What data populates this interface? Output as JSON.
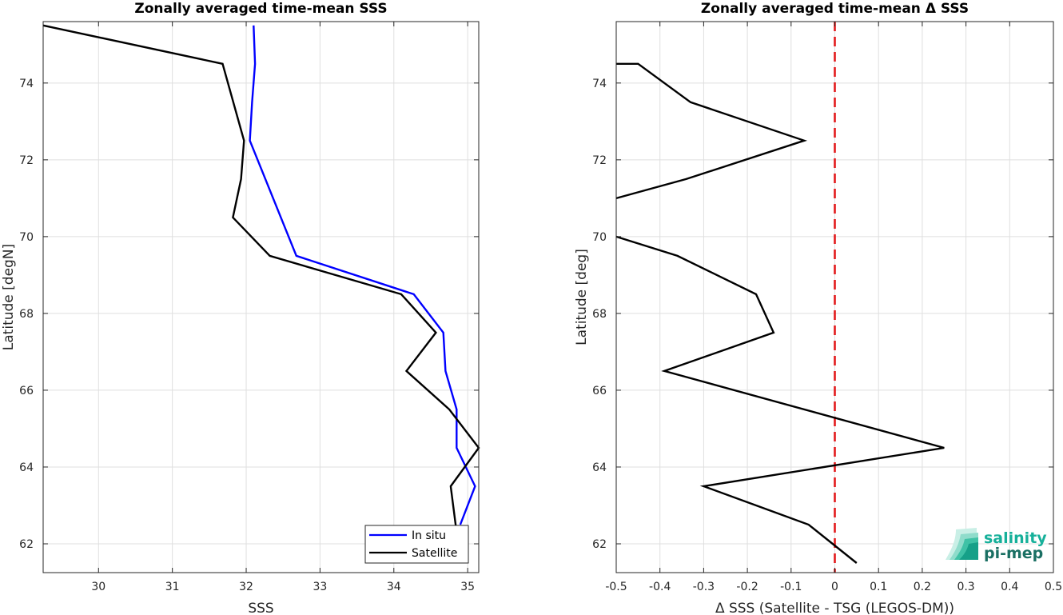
{
  "chart_data": [
    {
      "type": "line",
      "title": "Zonally averaged time-mean SSS",
      "xlabel": "SSS",
      "ylabel": "Latitude [degN]",
      "xlim": [
        29.25,
        35.15
      ],
      "ylim": [
        61.25,
        75.6
      ],
      "xticks": [
        30,
        31,
        32,
        33,
        34,
        35
      ],
      "yticks": [
        62,
        64,
        66,
        68,
        70,
        72,
        74
      ],
      "grid": true,
      "legend": "bottom-right",
      "series": [
        {
          "name": "In situ",
          "color": "#0000ff",
          "x": [
            34.9,
            35.1,
            34.85,
            34.85,
            34.7,
            34.67,
            34.27,
            32.68,
            32.05,
            32.08,
            32.12,
            32.1
          ],
          "y": [
            62.5,
            63.5,
            64.5,
            65.5,
            66.5,
            67.5,
            68.5,
            69.5,
            72.5,
            73.5,
            74.5,
            75.5
          ]
        },
        {
          "name": "Satellite",
          "color": "#000000",
          "x": [
            34.85,
            34.77,
            35.15,
            34.75,
            34.17,
            34.57,
            34.1,
            32.32,
            31.82,
            31.93,
            31.97,
            31.68,
            29.25
          ],
          "y": [
            62.3,
            63.5,
            64.5,
            65.5,
            66.5,
            67.5,
            68.5,
            69.5,
            70.5,
            71.5,
            72.5,
            74.5,
            75.5
          ]
        }
      ]
    },
    {
      "type": "line",
      "title": "Zonally averaged time-mean Δ SSS",
      "xlabel": "Δ SSS (Satellite - TSG (LEGOS-DM))",
      "ylabel": "Latitude [deg]",
      "xlim": [
        -0.5,
        0.5
      ],
      "ylim": [
        61.25,
        75.6
      ],
      "xticks": [
        -0.5,
        -0.4,
        -0.3,
        -0.2,
        -0.1,
        0,
        0.1,
        0.2,
        0.3,
        0.4,
        0.5
      ],
      "yticks": [
        62,
        64,
        66,
        68,
        70,
        72,
        74
      ],
      "grid": true,
      "zero_line_color": "#e31a1c",
      "series": [
        {
          "color": "#000000",
          "segments": [
            {
              "x": [
                0.05,
                -0.06,
                -0.3,
                0.25,
                -0.39,
                -0.14,
                -0.18,
                -0.36,
                -0.5
              ],
              "y": [
                61.5,
                62.5,
                63.5,
                64.5,
                66.5,
                67.5,
                68.5,
                69.5,
                70.0
              ]
            },
            {
              "x": [
                -0.5,
                -0.34,
                -0.07,
                -0.33,
                -0.45,
                -0.5
              ],
              "y": [
                71.0,
                71.5,
                72.5,
                73.5,
                74.5,
                74.5
              ]
            }
          ]
        }
      ]
    }
  ],
  "logo": {
    "line1": "salinity",
    "line2": "pi-mep",
    "color1": "#16b09a",
    "color2": "#1a6f63"
  }
}
